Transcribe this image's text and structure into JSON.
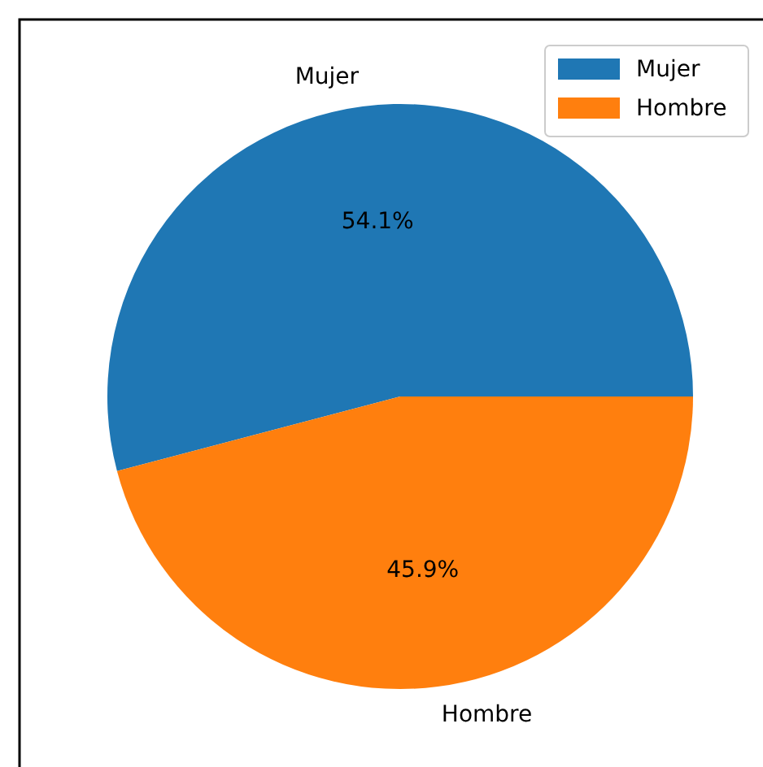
{
  "chart_data": {
    "type": "pie",
    "categories": [
      "Mujer",
      "Hombre"
    ],
    "values": [
      54.1,
      45.9
    ],
    "colors": [
      "#1f77b4",
      "#ff7f0e"
    ],
    "value_labels": [
      "54.1%",
      "45.9%"
    ],
    "legend": "top right"
  }
}
